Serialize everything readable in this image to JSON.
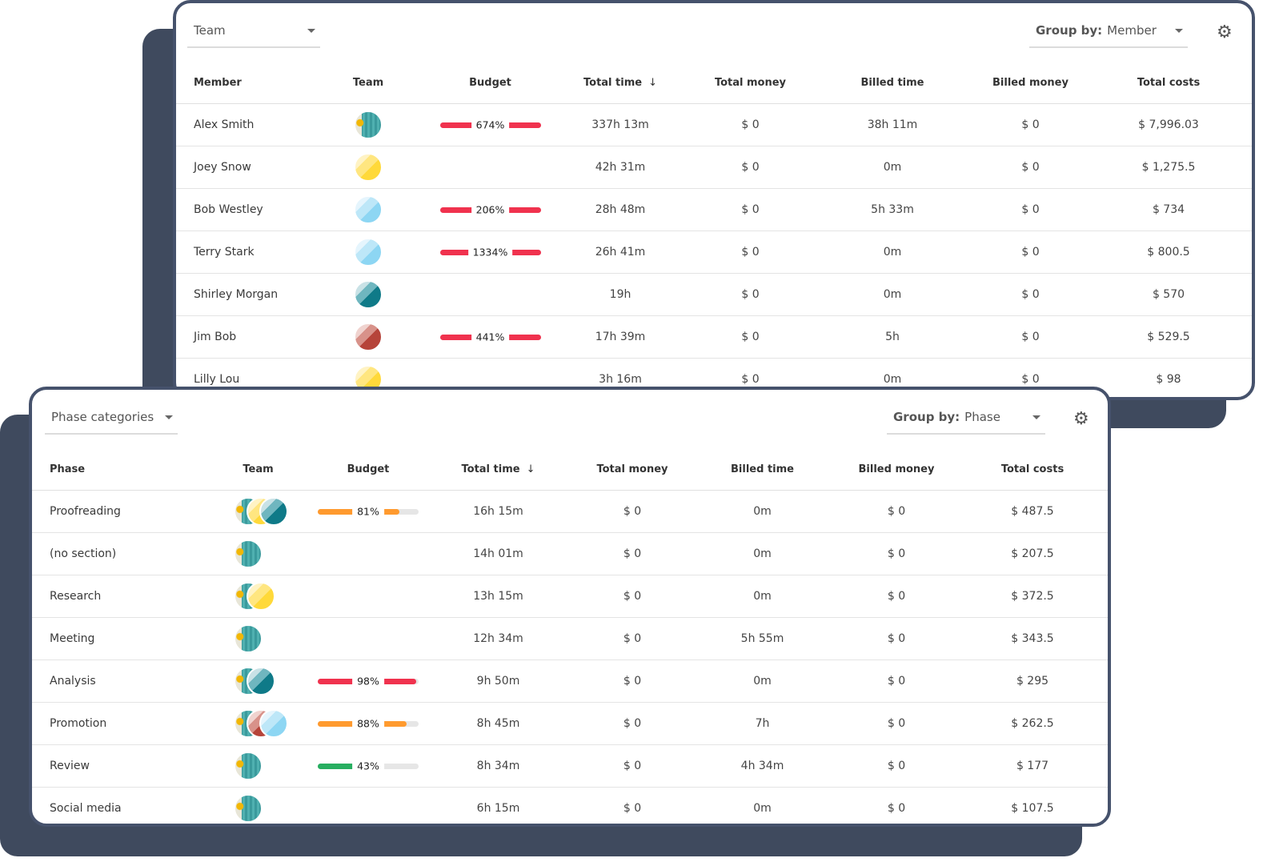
{
  "colors": {
    "over": "#f0324e",
    "warn": "#ff9a2e",
    "ok": "#27ae60",
    "frame": "#46526c"
  },
  "member_report": {
    "filter": {
      "value": "Team"
    },
    "group_by": {
      "label": "Group by:",
      "value": "Member"
    },
    "settings_icon": "gear-icon",
    "columns": [
      "Member",
      "Team",
      "Budget",
      "Total time",
      "Total money",
      "Billed time",
      "Billed money",
      "Total costs"
    ],
    "sort_icon": "arrow-down-icon",
    "rows": [
      {
        "name": "Alex Smith",
        "team": [
          "photo"
        ],
        "budget": {
          "label": "674%",
          "pct": 674,
          "status": "over"
        },
        "total_time": "337h 13m",
        "total_money": "$ 0",
        "billed_time": "38h 11m",
        "billed_money": "$ 0",
        "total_costs": "$ 7,996.03"
      },
      {
        "name": "Joey Snow",
        "team": [
          "yellow"
        ],
        "budget": null,
        "total_time": "42h 31m",
        "total_money": "$ 0",
        "billed_time": "0m",
        "billed_money": "$ 0",
        "total_costs": "$ 1,275.5"
      },
      {
        "name": "Bob Westley",
        "team": [
          "lightblue"
        ],
        "budget": {
          "label": "206%",
          "pct": 206,
          "status": "over"
        },
        "total_time": "28h 48m",
        "total_money": "$ 0",
        "billed_time": "5h 33m",
        "billed_money": "$ 0",
        "total_costs": "$ 734"
      },
      {
        "name": "Terry Stark",
        "team": [
          "lightblue"
        ],
        "budget": {
          "label": "1334%",
          "pct": 1334,
          "status": "over"
        },
        "total_time": "26h 41m",
        "total_money": "$ 0",
        "billed_time": "0m",
        "billed_money": "$ 0",
        "total_costs": "$ 800.5"
      },
      {
        "name": "Shirley Morgan",
        "team": [
          "darkteal"
        ],
        "budget": null,
        "total_time": "19h",
        "total_money": "$ 0",
        "billed_time": "0m",
        "billed_money": "$ 0",
        "total_costs": "$ 570"
      },
      {
        "name": "Jim Bob",
        "team": [
          "red"
        ],
        "budget": {
          "label": "441%",
          "pct": 441,
          "status": "over"
        },
        "total_time": "17h 39m",
        "total_money": "$ 0",
        "billed_time": "5h",
        "billed_money": "$ 0",
        "total_costs": "$ 529.5"
      },
      {
        "name": "Lilly Lou",
        "team": [
          "yellow"
        ],
        "budget": null,
        "total_time": "3h 16m",
        "total_money": "$ 0",
        "billed_time": "0m",
        "billed_money": "$ 0",
        "total_costs": "$ 98"
      }
    ]
  },
  "phase_report": {
    "filter": {
      "value": "Phase categories"
    },
    "group_by": {
      "label": "Group by:",
      "value": "Phase"
    },
    "settings_icon": "gear-icon",
    "columns": [
      "Phase",
      "Team",
      "Budget",
      "Total time",
      "Total money",
      "Billed time",
      "Billed money",
      "Total costs"
    ],
    "sort_icon": "arrow-down-icon",
    "rows": [
      {
        "name": "Proofreading",
        "team": [
          "photo",
          "yellow",
          "darkteal"
        ],
        "budget": {
          "label": "81%",
          "pct": 81,
          "status": "warn"
        },
        "total_time": "16h 15m",
        "total_money": "$ 0",
        "billed_time": "0m",
        "billed_money": "$ 0",
        "total_costs": "$ 487.5"
      },
      {
        "name": "(no section)",
        "team": [
          "photo"
        ],
        "budget": null,
        "total_time": "14h 01m",
        "total_money": "$ 0",
        "billed_time": "0m",
        "billed_money": "$ 0",
        "total_costs": "$ 207.5"
      },
      {
        "name": "Research",
        "team": [
          "photo",
          "yellow"
        ],
        "budget": null,
        "total_time": "13h 15m",
        "total_money": "$ 0",
        "billed_time": "0m",
        "billed_money": "$ 0",
        "total_costs": "$ 372.5"
      },
      {
        "name": "Meeting",
        "team": [
          "photo"
        ],
        "budget": null,
        "total_time": "12h 34m",
        "total_money": "$ 0",
        "billed_time": "5h 55m",
        "billed_money": "$ 0",
        "total_costs": "$ 343.5"
      },
      {
        "name": "Analysis",
        "team": [
          "photo",
          "darkteal"
        ],
        "budget": {
          "label": "98%",
          "pct": 98,
          "status": "over"
        },
        "total_time": "9h 50m",
        "total_money": "$ 0",
        "billed_time": "0m",
        "billed_money": "$ 0",
        "total_costs": "$ 295"
      },
      {
        "name": "Promotion",
        "team": [
          "photo",
          "red",
          "lightblue"
        ],
        "budget": {
          "label": "88%",
          "pct": 88,
          "status": "warn"
        },
        "total_time": "8h 45m",
        "total_money": "$ 0",
        "billed_time": "7h",
        "billed_money": "$ 0",
        "total_costs": "$ 262.5"
      },
      {
        "name": "Review",
        "team": [
          "photo"
        ],
        "budget": {
          "label": "43%",
          "pct": 43,
          "status": "ok"
        },
        "total_time": "8h 34m",
        "total_money": "$ 0",
        "billed_time": "4h 34m",
        "billed_money": "$ 0",
        "total_costs": "$ 177"
      },
      {
        "name": "Social media",
        "team": [
          "photo"
        ],
        "budget": null,
        "total_time": "6h 15m",
        "total_money": "$ 0",
        "billed_time": "0m",
        "billed_money": "$ 0",
        "total_costs": "$ 107.5"
      }
    ]
  }
}
